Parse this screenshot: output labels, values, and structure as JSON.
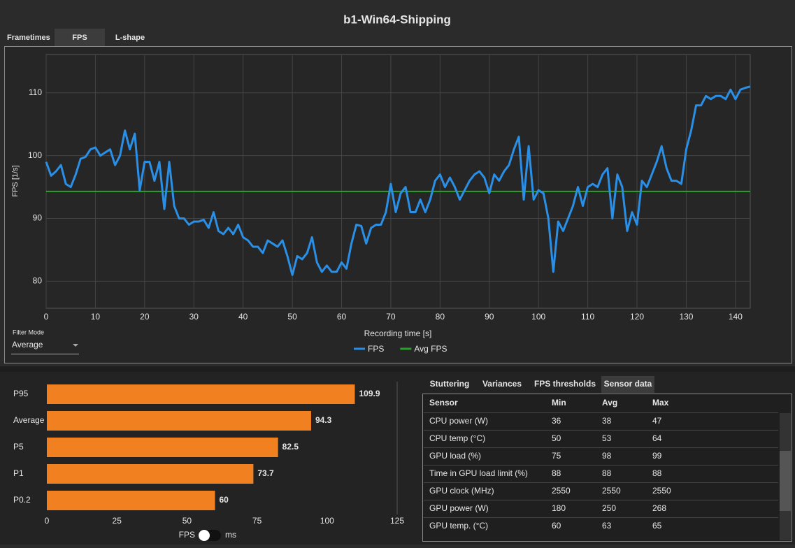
{
  "window_title": "b1-Win64-Shipping",
  "tabs": [
    "Frametimes",
    "FPS",
    "L-shape"
  ],
  "filter": {
    "label": "Filter Mode",
    "value": "Average"
  },
  "toggle": {
    "left": "FPS",
    "right": "ms"
  },
  "sensor_tabs": [
    "Stuttering",
    "Variances",
    "FPS thresholds",
    "Sensor data"
  ],
  "table": {
    "header": [
      "Sensor",
      "Min",
      "Avg",
      "Max"
    ],
    "rows": [
      [
        "CPU power (W)",
        "36",
        "38",
        "47"
      ],
      [
        "CPU temp (°C)",
        "50",
        "53",
        "64"
      ],
      [
        "GPU load (%)",
        "75",
        "98",
        "99"
      ],
      [
        "Time in GPU load limit (%)",
        "88",
        "88",
        "88"
      ],
      [
        "GPU clock (MHz)",
        "2550",
        "2550",
        "2550"
      ],
      [
        "GPU power (W)",
        "180",
        "250",
        "268"
      ],
      [
        "GPU temp. (°C)",
        "60",
        "63",
        "65"
      ]
    ]
  },
  "chart_data": [
    {
      "type": "line",
      "x_label": "Recording time [s]",
      "y_label": "FPS [1/s]",
      "x": [
        0,
        1,
        2,
        3,
        4,
        5,
        6,
        7,
        8,
        9,
        10,
        11,
        12,
        13,
        14,
        15,
        16,
        17,
        18,
        19,
        20,
        21,
        22,
        23,
        24,
        25,
        26,
        27,
        28,
        29,
        30,
        31,
        32,
        33,
        34,
        35,
        36,
        37,
        38,
        39,
        40,
        41,
        42,
        43,
        44,
        45,
        46,
        47,
        48,
        49,
        50,
        51,
        52,
        53,
        54,
        55,
        56,
        57,
        58,
        59,
        60,
        61,
        62,
        63,
        64,
        65,
        66,
        67,
        68,
        69,
        70,
        71,
        72,
        73,
        74,
        75,
        76,
        77,
        78,
        79,
        80,
        81,
        82,
        83,
        84,
        85,
        86,
        87,
        88,
        89,
        90,
        91,
        92,
        93,
        94,
        95,
        96,
        97,
        98,
        99,
        100,
        101,
        102,
        103,
        104,
        105,
        106,
        107,
        108,
        109,
        110,
        111,
        112,
        113,
        114,
        115,
        116,
        117,
        118,
        119,
        120,
        121,
        122,
        123,
        124,
        125,
        126,
        127,
        128,
        129,
        130,
        131,
        132,
        133,
        134,
        135,
        136,
        137,
        138,
        139,
        140,
        141,
        142,
        143
      ],
      "series": [
        {
          "name": "FPS",
          "color": "#2a8fe6",
          "values": [
            99,
            96.8,
            97.5,
            98.5,
            95.5,
            95,
            97,
            99.5,
            99.8,
            101,
            101.3,
            100,
            100.5,
            101,
            98.5,
            100,
            104,
            101,
            103.5,
            94.5,
            99,
            99,
            96,
            99,
            91.5,
            99,
            92,
            90,
            90,
            89,
            89.5,
            89.5,
            89.8,
            88.5,
            91,
            88,
            87.5,
            88.5,
            87.5,
            89,
            87,
            86.5,
            85.5,
            85.5,
            84.5,
            86.5,
            86,
            85.5,
            86.5,
            84,
            81,
            84,
            83.5,
            84.5,
            87,
            83,
            81.5,
            82.5,
            81.5,
            81.5,
            83,
            82,
            86,
            89,
            88.8,
            86,
            88.5,
            89,
            89,
            91,
            95.5,
            91,
            94,
            95,
            91,
            91,
            93,
            91,
            93,
            96,
            97,
            95,
            96.5,
            95,
            93,
            94.5,
            96,
            97,
            97.5,
            96.5,
            94,
            97,
            96,
            97.5,
            98.5,
            101,
            103,
            93,
            101.5,
            93,
            94.5,
            94,
            90,
            81.5,
            89.5,
            88,
            90,
            92,
            95,
            92,
            95,
            95.5,
            95,
            97,
            98,
            90,
            97,
            95,
            88,
            91,
            89,
            96,
            95,
            97,
            99,
            101.5,
            98,
            96,
            96,
            95.5,
            101,
            104,
            108,
            108,
            109.5,
            109,
            109.5,
            109.5,
            109,
            110.5,
            109,
            110.5,
            110.8,
            111
          ]
        }
      ],
      "avg_line": {
        "name": "Avg FPS",
        "color": "#2ca02c",
        "value": 94.3
      },
      "xlim": [
        0,
        143
      ],
      "xticks": [
        0,
        10,
        20,
        30,
        40,
        50,
        60,
        70,
        80,
        90,
        100,
        110,
        120,
        130,
        140
      ],
      "ylim": [
        75.7,
        116.1
      ],
      "yticks": [
        80,
        90,
        100,
        110
      ],
      "grid": true
    },
    {
      "type": "bar",
      "orientation": "horizontal",
      "categories": [
        "P95",
        "Average",
        "P5",
        "P1",
        "P0.2"
      ],
      "values": [
        109.9,
        94.3,
        82.5,
        73.7,
        60
      ],
      "color": "#f08020",
      "xlim": [
        0,
        125
      ],
      "xticks": [
        0,
        25,
        50,
        75,
        100,
        125
      ]
    }
  ]
}
